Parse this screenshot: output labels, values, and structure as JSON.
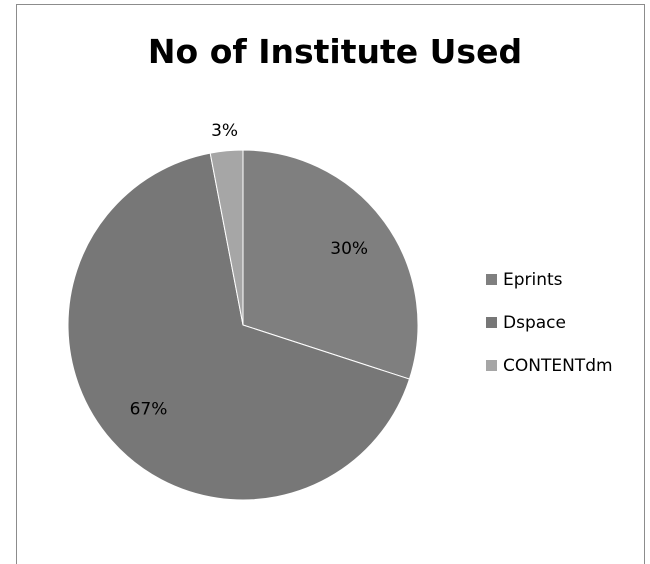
{
  "chart_data": {
    "type": "pie",
    "title": "No of Institute Used",
    "categories": [
      "Eprints",
      "Dspace",
      "CONTENTdm"
    ],
    "values": [
      30,
      67,
      3
    ],
    "data_labels": [
      "30%",
      "67%",
      "3%"
    ],
    "colors": [
      "#7f7f7f",
      "#777777",
      "#a6a6a6"
    ],
    "start_angle_deg": 0,
    "direction": "clockwise",
    "legend_position": "right"
  }
}
